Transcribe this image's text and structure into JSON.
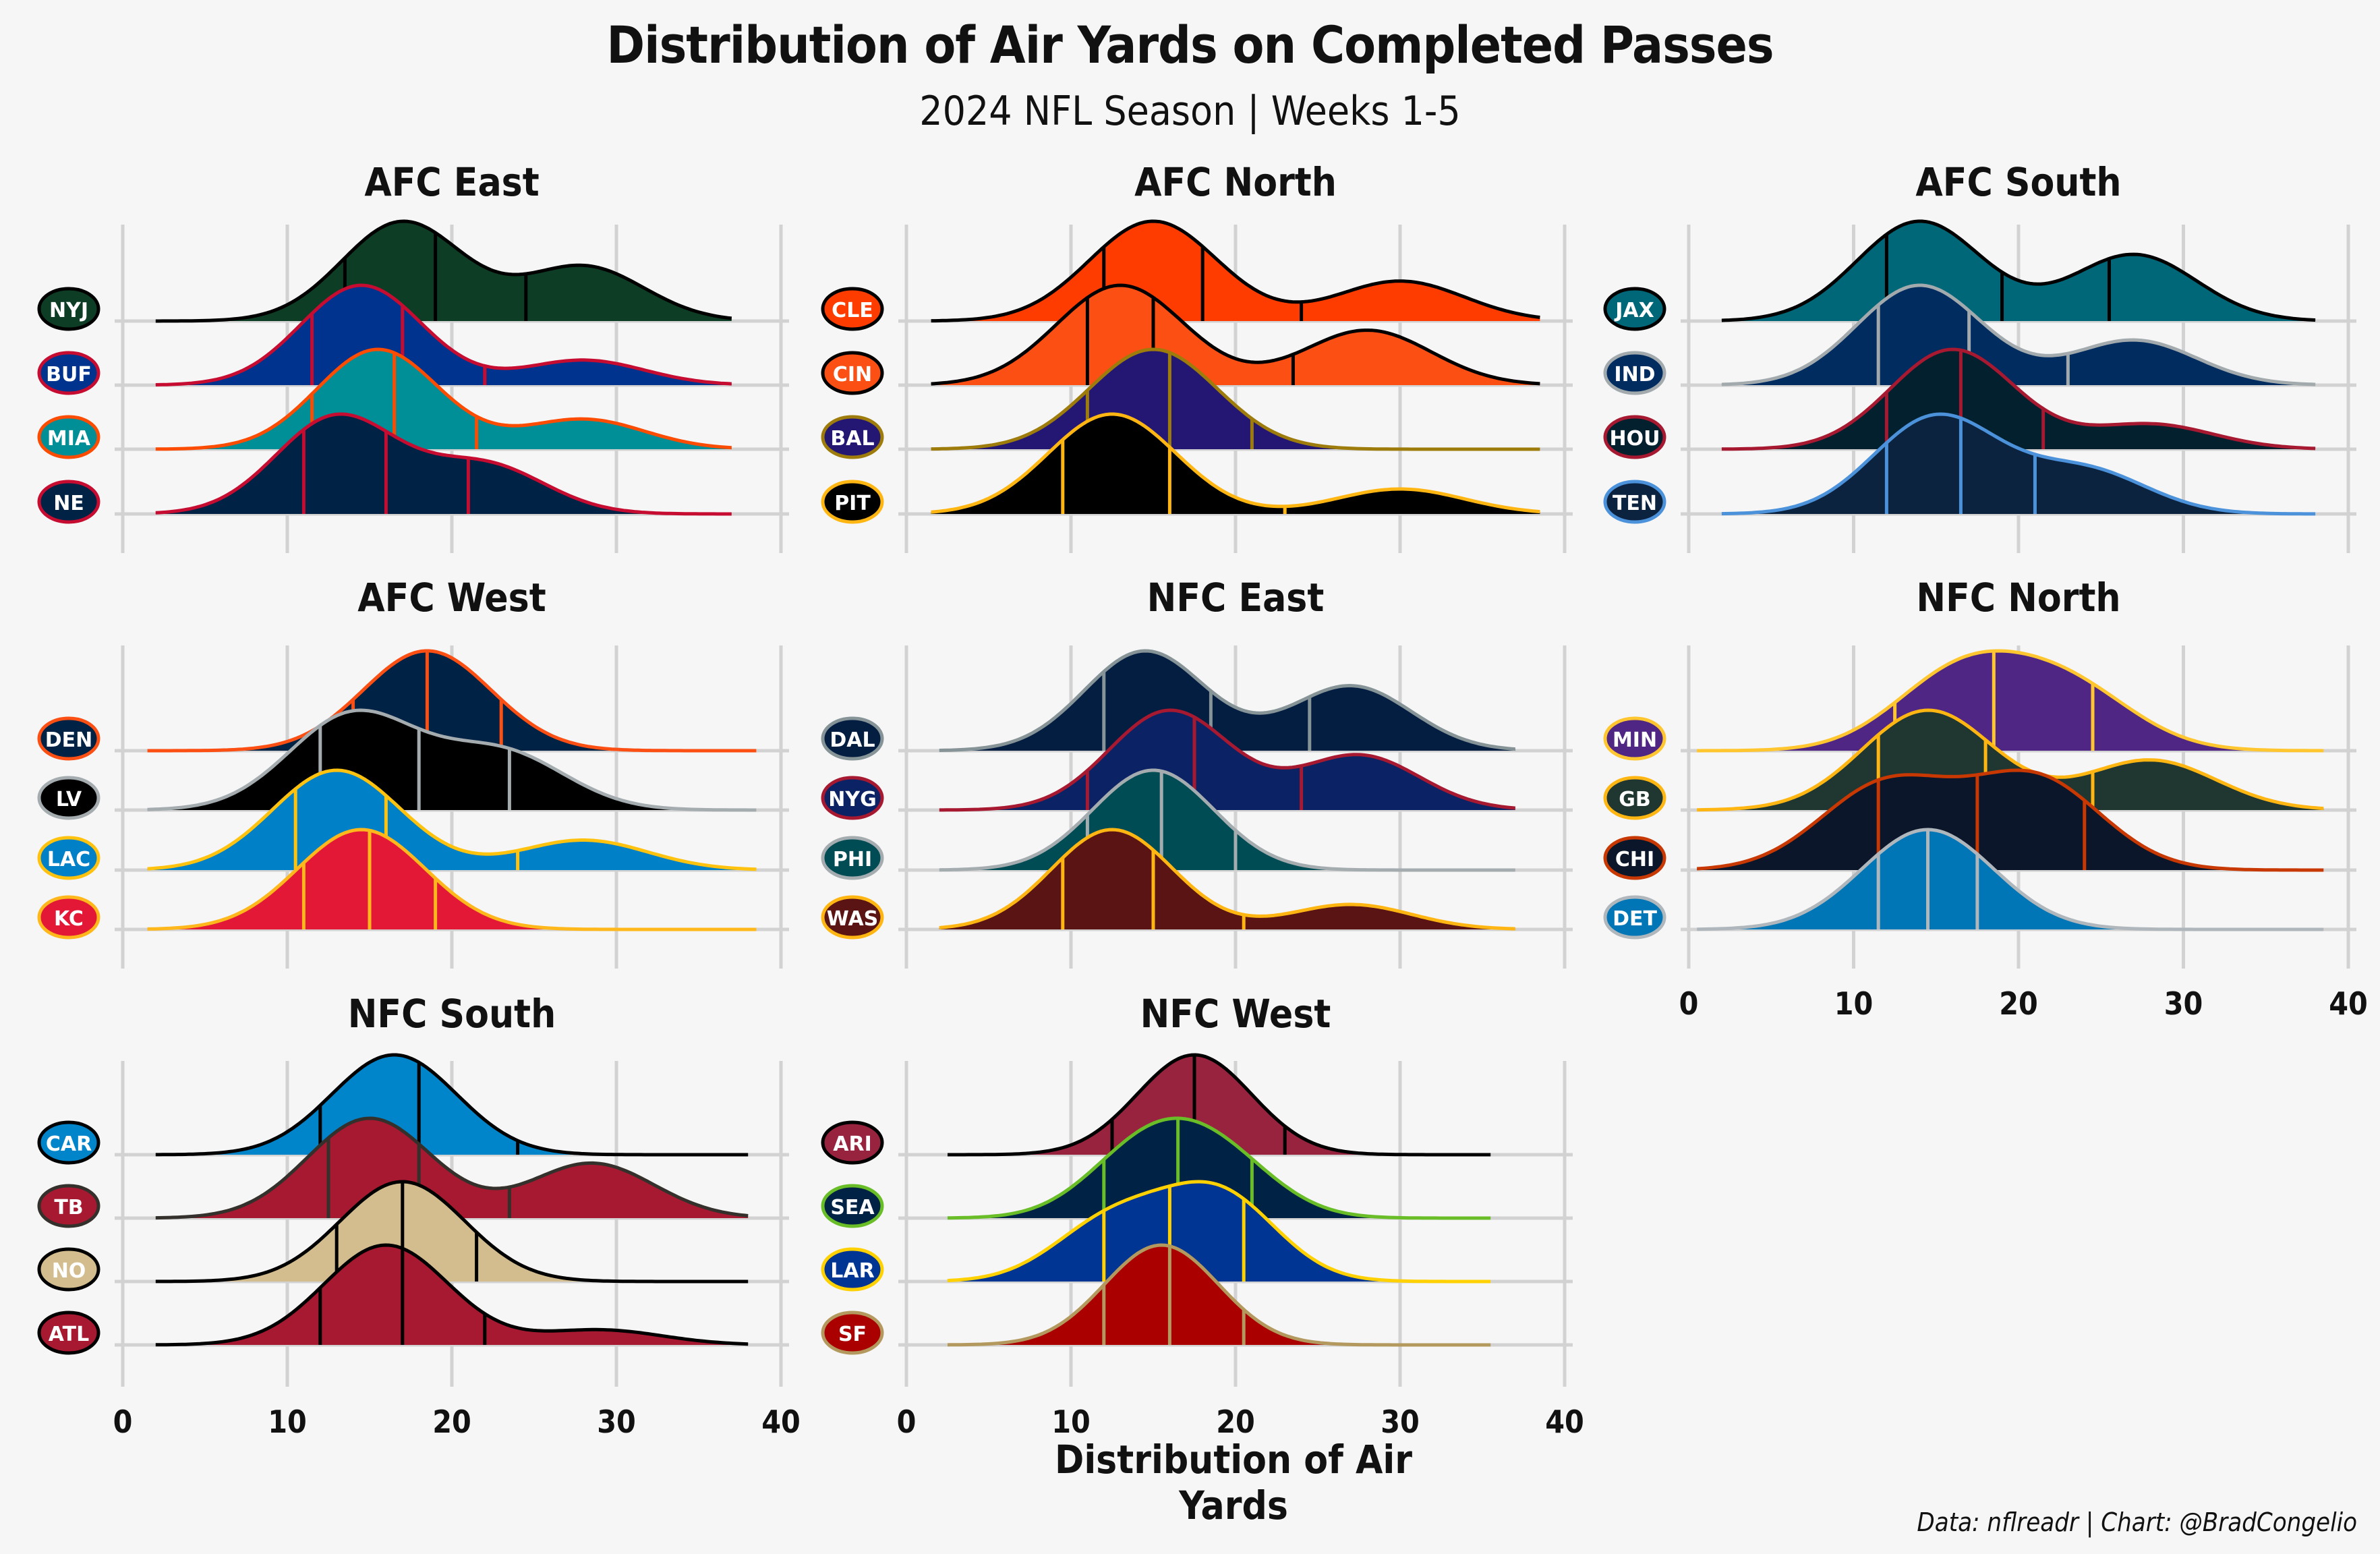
{
  "header": {
    "title": "Distribution of Air Yards on Completed Passes",
    "subtitle": "2024 NFL Season | Weeks 1-5"
  },
  "caption": "Data: nflreadr | Chart: @BradCongelio",
  "chart_data": {
    "type": "ridgeline",
    "xlabel": "Distribution of Air Yards",
    "xlim": [
      0,
      40
    ],
    "x_ticks": [
      0,
      10,
      20,
      30,
      40
    ],
    "x_tick_labels": [
      "0",
      "10",
      "20",
      "30",
      "40"
    ],
    "grid": true,
    "quantile_lines": [
      0.25,
      0.5,
      0.75
    ],
    "panels": [
      {
        "name": "AFC East",
        "teams": [
          {
            "team": "NYJ",
            "fill": "#0e3d26",
            "line": "#000000",
            "range": [
              2,
              37
            ],
            "quartiles": [
              13.5,
              19,
              24.5
            ],
            "peaks": [
              [
                17,
                1.0
              ],
              [
                28,
                0.55
              ]
            ]
          },
          {
            "team": "BUF",
            "fill": "#00338d",
            "line": "#c60c30",
            "range": [
              2,
              37
            ],
            "quartiles": [
              11.5,
              17,
              22
            ],
            "peaks": [
              [
                14.5,
                1.0
              ],
              [
                28,
                0.25
              ]
            ]
          },
          {
            "team": "MIA",
            "fill": "#008e97",
            "line": "#fc4c02",
            "range": [
              2,
              37
            ],
            "quartiles": [
              11.5,
              16.5,
              21.5
            ],
            "peaks": [
              [
                15.5,
                1.0
              ],
              [
                28,
                0.3
              ]
            ]
          },
          {
            "team": "NE",
            "fill": "#002244",
            "line": "#c60c30",
            "range": [
              2,
              37
            ],
            "quartiles": [
              11,
              16,
              21
            ],
            "peaks": [
              [
                13,
                1.0
              ],
              [
                22,
                0.5
              ]
            ]
          }
        ]
      },
      {
        "name": "AFC North",
        "teams": [
          {
            "team": "CLE",
            "fill": "#ff3c00",
            "line": "#000000",
            "range": [
              1.5,
              38.5
            ],
            "quartiles": [
              12,
              18,
              24
            ],
            "peaks": [
              [
                15,
                1.0
              ],
              [
                30,
                0.4
              ]
            ]
          },
          {
            "team": "CIN",
            "fill": "#fb4f14",
            "line": "#000000",
            "range": [
              1.5,
              38.5
            ],
            "quartiles": [
              11,
              15,
              23.5
            ],
            "peaks": [
              [
                13,
                1.0
              ],
              [
                28,
                0.55
              ]
            ]
          },
          {
            "team": "BAL",
            "fill": "#241773",
            "line": "#9e7c0c",
            "range": [
              1.5,
              38.5
            ],
            "quartiles": [
              11,
              16,
              21
            ],
            "peaks": [
              [
                15,
                1.0
              ]
            ]
          },
          {
            "team": "PIT",
            "fill": "#000000",
            "line": "#ffb612",
            "range": [
              1.5,
              38.5
            ],
            "quartiles": [
              9.5,
              16,
              23
            ],
            "peaks": [
              [
                12.5,
                1.0
              ],
              [
                30,
                0.25
              ]
            ]
          }
        ]
      },
      {
        "name": "AFC South",
        "teams": [
          {
            "team": "JAX",
            "fill": "#006778",
            "line": "#000000",
            "range": [
              2,
              38
            ],
            "quartiles": [
              12,
              19,
              25.5
            ],
            "peaks": [
              [
                14,
                0.9
              ],
              [
                27,
                0.6
              ]
            ]
          },
          {
            "team": "IND",
            "fill": "#002c5f",
            "line": "#a2aaad",
            "range": [
              2,
              38
            ],
            "quartiles": [
              11.5,
              17,
              23
            ],
            "peaks": [
              [
                14,
                1.0
              ],
              [
                27,
                0.45
              ]
            ]
          },
          {
            "team": "HOU",
            "fill": "#03202f",
            "line": "#a71930",
            "range": [
              2,
              38
            ],
            "quartiles": [
              12,
              16.5,
              21.5
            ],
            "peaks": [
              [
                16,
                1.0
              ],
              [
                28,
                0.25
              ]
            ]
          },
          {
            "team": "TEN",
            "fill": "#0c2340",
            "line": "#4b92db",
            "range": [
              2,
              38
            ],
            "quartiles": [
              12,
              16.5,
              21
            ],
            "peaks": [
              [
                15,
                1.0
              ],
              [
                24,
                0.45
              ]
            ]
          }
        ]
      },
      {
        "name": "AFC West",
        "teams": [
          {
            "team": "DEN",
            "fill": "#002244",
            "line": "#fb4f14",
            "range": [
              1.5,
              38.5
            ],
            "quartiles": [
              14,
              18.5,
              23
            ],
            "peaks": [
              [
                18.5,
                1.0
              ]
            ]
          },
          {
            "team": "LV",
            "fill": "#000000",
            "line": "#a5acaf",
            "range": [
              1.5,
              38.5
            ],
            "quartiles": [
              12,
              18,
              23.5
            ],
            "peaks": [
              [
                14,
                1.0
              ],
              [
                23,
                0.6
              ]
            ]
          },
          {
            "team": "LAC",
            "fill": "#0080c6",
            "line": "#ffc20e",
            "range": [
              1.5,
              38.5
            ],
            "quartiles": [
              10.5,
              16,
              24
            ],
            "peaks": [
              [
                13,
                1.0
              ],
              [
                28,
                0.3
              ]
            ]
          },
          {
            "team": "KC",
            "fill": "#e31837",
            "line": "#ffb81c",
            "range": [
              1.5,
              38.5
            ],
            "quartiles": [
              11,
              15,
              19
            ],
            "peaks": [
              [
                14.5,
                1.0
              ]
            ]
          }
        ]
      },
      {
        "name": "NFC East",
        "teams": [
          {
            "team": "DAL",
            "fill": "#041e42",
            "line": "#869397",
            "range": [
              2,
              37
            ],
            "quartiles": [
              12,
              18.5,
              24.5
            ],
            "peaks": [
              [
                14.5,
                1.0
              ],
              [
                27,
                0.65
              ]
            ]
          },
          {
            "team": "NYG",
            "fill": "#0b2265",
            "line": "#a71930",
            "range": [
              2,
              37
            ],
            "quartiles": [
              11,
              17.5,
              24
            ],
            "peaks": [
              [
                16,
                1.0
              ],
              [
                27.5,
                0.55
              ]
            ]
          },
          {
            "team": "PHI",
            "fill": "#004c54",
            "line": "#a5acaf",
            "range": [
              2,
              37
            ],
            "quartiles": [
              11,
              15.5,
              20
            ],
            "peaks": [
              [
                15,
                1.0
              ]
            ]
          },
          {
            "team": "WAS",
            "fill": "#5a1414",
            "line": "#ffb612",
            "range": [
              2,
              37
            ],
            "quartiles": [
              9.5,
              15,
              20.5
            ],
            "peaks": [
              [
                12.5,
                1.0
              ],
              [
                27,
                0.25
              ]
            ]
          }
        ]
      },
      {
        "name": "NFC North",
        "teams": [
          {
            "team": "MIN",
            "fill": "#4f2683",
            "line": "#ffc62f",
            "range": [
              0.5,
              38.5
            ],
            "quartiles": [
              12.5,
              18.5,
              24.5
            ],
            "peaks": [
              [
                16.5,
                1.0
              ],
              [
                23,
                0.8
              ]
            ]
          },
          {
            "team": "GB",
            "fill": "#203731",
            "line": "#ffb612",
            "range": [
              0.5,
              38.5
            ],
            "quartiles": [
              11.5,
              18,
              24.5
            ],
            "peaks": [
              [
                14.5,
                1.0
              ],
              [
                28,
                0.5
              ]
            ]
          },
          {
            "team": "CHI",
            "fill": "#0b162a",
            "line": "#c83803",
            "range": [
              0.5,
              38.5
            ],
            "quartiles": [
              11.5,
              17.5,
              24
            ],
            "peaks": [
              [
                12,
                0.75
              ],
              [
                21,
                0.8
              ]
            ]
          },
          {
            "team": "DET",
            "fill": "#0076b6",
            "line": "#b0b7bc",
            "range": [
              0.5,
              38.5
            ],
            "quartiles": [
              11.5,
              14.5,
              17.5
            ],
            "peaks": [
              [
                14.5,
                1.0
              ]
            ]
          }
        ]
      },
      {
        "name": "NFC South",
        "teams": [
          {
            "team": "CAR",
            "fill": "#0085ca",
            "line": "#000000",
            "range": [
              2,
              38
            ],
            "quartiles": [
              12,
              18,
              24
            ],
            "peaks": [
              [
                16.5,
                1.0
              ]
            ]
          },
          {
            "team": "TB",
            "fill": "#a71930",
            "line": "#34302b",
            "range": [
              2,
              38
            ],
            "quartiles": [
              12.5,
              18,
              23.5
            ],
            "peaks": [
              [
                15,
                1.0
              ],
              [
                28.5,
                0.55
              ]
            ]
          },
          {
            "team": "NO",
            "fill": "#d3bc8d",
            "line": "#000000",
            "range": [
              2,
              38
            ],
            "quartiles": [
              13,
              17,
              21.5
            ],
            "peaks": [
              [
                17,
                1.0
              ]
            ]
          },
          {
            "team": "ATL",
            "fill": "#a71930",
            "line": "#000000",
            "range": [
              2,
              38
            ],
            "quartiles": [
              12,
              17,
              22
            ],
            "peaks": [
              [
                16,
                1.0
              ],
              [
                29,
                0.15
              ]
            ]
          }
        ]
      },
      {
        "name": "NFC West",
        "teams": [
          {
            "team": "ARI",
            "fill": "#97233f",
            "line": "#000000",
            "range": [
              2.5,
              35.5
            ],
            "quartiles": [
              12.5,
              17.5,
              23
            ],
            "peaks": [
              [
                17.5,
                1.0
              ]
            ]
          },
          {
            "team": "SEA",
            "fill": "#002244",
            "line": "#69be28",
            "range": [
              2.5,
              35.5
            ],
            "quartiles": [
              12,
              16.5,
              21
            ],
            "peaks": [
              [
                14.5,
                1.0
              ],
              [
                19,
                0.85
              ]
            ]
          },
          {
            "team": "LAR",
            "fill": "#003594",
            "line": "#ffd100",
            "range": [
              2.5,
              35.5
            ],
            "quartiles": [
              12,
              16,
              20.5
            ],
            "peaks": [
              [
                12.5,
                0.7
              ],
              [
                19,
                1.0
              ]
            ]
          },
          {
            "team": "SF",
            "fill": "#aa0000",
            "line": "#b3995d",
            "range": [
              2.5,
              35.5
            ],
            "quartiles": [
              12,
              16,
              20.5
            ],
            "peaks": [
              [
                15.5,
                1.0
              ]
            ]
          }
        ]
      }
    ]
  }
}
